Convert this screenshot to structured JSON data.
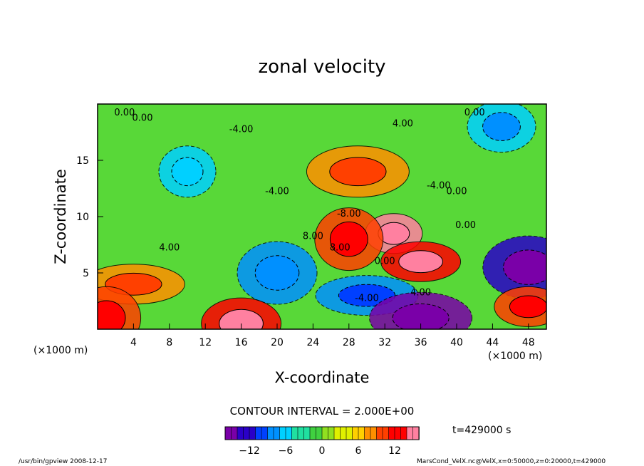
{
  "chart_data": {
    "type": "heatmap",
    "title": "zonal velocity",
    "xlabel": "X-coordinate",
    "ylabel": "Z-coordinate",
    "x_unit_left": "(×1000 m)",
    "x_unit_right": "(×1000 m)",
    "xlim": [
      0,
      50
    ],
    "ylim": [
      0,
      20
    ],
    "x_ticks": [
      4,
      8,
      12,
      16,
      20,
      24,
      28,
      32,
      36,
      40,
      44,
      48
    ],
    "y_ticks": [
      5,
      10,
      15
    ],
    "contour_interval_text": "CONTOUR INTERVAL = 2.000E+00",
    "time_text": "t=429000 s",
    "colorbar": {
      "range": [
        -16,
        16
      ],
      "ticks": [
        -12,
        -6,
        0,
        6,
        12
      ],
      "colors": [
        "#7a00a8",
        "#2a00c8",
        "#0040ff",
        "#0090ff",
        "#00d0ff",
        "#20e0a0",
        "#40d040",
        "#90e020",
        "#e0f000",
        "#ffd000",
        "#ff9000",
        "#ff4000",
        "#ff0000",
        "#ff80a0"
      ]
    },
    "contour_labels": [
      "0.00",
      "0.00",
      "-4.00",
      "4.00",
      "0.00",
      "-4.00",
      "4.00",
      "8.00",
      "8.00",
      "-8.00",
      "-4.00",
      "4.00",
      "0.00",
      "0.00",
      "0.00",
      "-4.00"
    ],
    "fields": [
      {
        "x": 33,
        "z": 8.5,
        "u": 15
      },
      {
        "x": 29,
        "z": 14,
        "u": 9
      },
      {
        "x": 28,
        "z": 8,
        "u": 11
      },
      {
        "x": 36,
        "z": 6,
        "u": 12
      },
      {
        "x": 10,
        "z": 14,
        "u": -5
      },
      {
        "x": 20,
        "z": 5,
        "u": -7
      },
      {
        "x": 30,
        "z": 3,
        "u": -9
      },
      {
        "x": 36,
        "z": 1,
        "u": -14
      },
      {
        "x": 48,
        "z": 5.5,
        "u": -13
      },
      {
        "x": 4,
        "z": 4,
        "u": 9
      },
      {
        "x": 16,
        "z": 0.5,
        "u": 12
      },
      {
        "x": 1,
        "z": 1,
        "u": 11
      },
      {
        "x": 48,
        "z": 2,
        "u": 11
      },
      {
        "x": 45,
        "z": 18,
        "u": -6
      }
    ]
  },
  "footer": {
    "left": "/usr/bin/gpview  2008-12-17",
    "right": "MarsCond_VelX.nc@VelX,x=0:50000,z=0:20000,t=429000"
  }
}
